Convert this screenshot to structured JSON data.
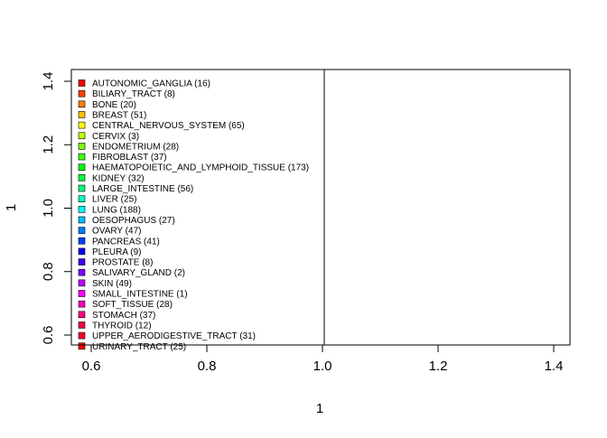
{
  "chart_data": {
    "type": "scatter",
    "title": "",
    "xlabel": "1",
    "ylabel": "1",
    "xlim": [
      0.6,
      1.4
    ],
    "ylim": [
      0.6,
      1.4
    ],
    "x_ticks": [
      "0.6",
      "0.8",
      "1.0",
      "1.2",
      "1.4"
    ],
    "y_ticks": [
      "0.6",
      "0.8",
      "1.0",
      "1.2",
      "1.4"
    ],
    "series": [],
    "legend": {
      "placement": "top-left",
      "entries": [
        {
          "label": "AUTONOMIC_GANGLIA (16)",
          "color": "#FF0000"
        },
        {
          "label": "BILIARY_TRACT (8)",
          "color": "#FF3F00"
        },
        {
          "label": "BONE (20)",
          "color": "#FF7F00"
        },
        {
          "label": "BREAST (51)",
          "color": "#FFBF00"
        },
        {
          "label": "CENTRAL_NERVOUS_SYSTEM (65)",
          "color": "#FFFF00"
        },
        {
          "label": "CERVIX (3)",
          "color": "#BFFF00"
        },
        {
          "label": "ENDOMETRIUM (28)",
          "color": "#7FFF00"
        },
        {
          "label": "FIBROBLAST (37)",
          "color": "#3FFF00"
        },
        {
          "label": "HAEMATOPOIETIC_AND_LYMPHOID_TISSUE (173)",
          "color": "#00FF00"
        },
        {
          "label": "KIDNEY (32)",
          "color": "#00FF3F"
        },
        {
          "label": "LARGE_INTESTINE (56)",
          "color": "#00FF7F"
        },
        {
          "label": "LIVER (25)",
          "color": "#00FFBF"
        },
        {
          "label": "LUNG (188)",
          "color": "#00FFFF"
        },
        {
          "label": "OESOPHAGUS (27)",
          "color": "#00BFFF"
        },
        {
          "label": "OVARY (47)",
          "color": "#007FFF"
        },
        {
          "label": "PANCREAS (41)",
          "color": "#003FFF"
        },
        {
          "label": "PLEURA (9)",
          "color": "#0000FF"
        },
        {
          "label": "PROSTATE (8)",
          "color": "#3F00FF"
        },
        {
          "label": "SALIVARY_GLAND (2)",
          "color": "#7F00FF"
        },
        {
          "label": "SKIN (49)",
          "color": "#BF00FF"
        },
        {
          "label": "SMALL_INTESTINE (1)",
          "color": "#FF00FF"
        },
        {
          "label": "SOFT_TISSUE (28)",
          "color": "#FF00BF"
        },
        {
          "label": "STOMACH (37)",
          "color": "#FF007F"
        },
        {
          "label": "THYROID (12)",
          "color": "#FF003F"
        },
        {
          "label": "UPPER_AERODIGESTIVE_TRACT (31)",
          "color": "#FF0026"
        },
        {
          "label": "URINARY_TRACT (25)",
          "color": "#FF0000"
        }
      ]
    }
  }
}
